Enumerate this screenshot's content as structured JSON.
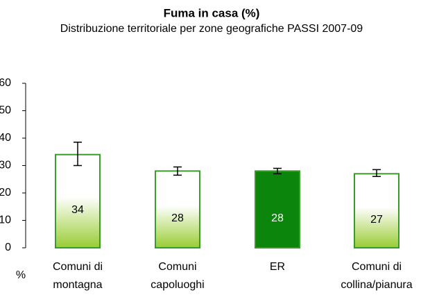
{
  "chart_data": {
    "type": "bar",
    "title": "Fuma in casa (%)",
    "subtitle": "Distribuzione territoriale per zone geografiche   PASSI 2007-09",
    "y_label": "%",
    "categories": [
      [
        "Comuni di",
        "montagna"
      ],
      [
        "Comuni",
        "capoluoghi"
      ],
      [
        "ER"
      ],
      [
        "Comuni di",
        "collina/pianura"
      ]
    ],
    "values": [
      34,
      28,
      28,
      27
    ],
    "ci_lower": [
      30,
      26.5,
      27,
      26
    ],
    "ci_upper": [
      38.5,
      29.5,
      29,
      28.5
    ],
    "colors": [
      "#99cc33",
      "#99cc33",
      "#0b850b",
      "#99cc33"
    ],
    "gradient": [
      true,
      true,
      false,
      true
    ],
    "border_color": "#3a9a2a",
    "ylim": [
      0,
      60
    ],
    "yticks": [
      0,
      10,
      20,
      30,
      40,
      50,
      60
    ]
  }
}
